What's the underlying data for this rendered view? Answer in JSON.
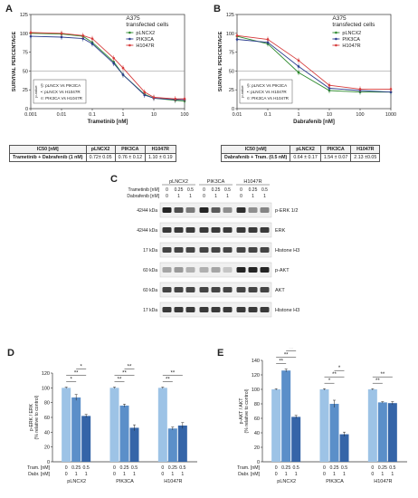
{
  "panel_letters": [
    "A",
    "B",
    "C",
    "D",
    "E"
  ],
  "ic_table_a": {
    "headers": [
      "IC50 [nM]",
      "pLNCX2",
      "PIK3CA",
      "H1047R"
    ],
    "row": [
      "Trametinib + Dabrafenib (1 nM)",
      "0.72± 0.05",
      "0.76 ± 0.12",
      "1.10 ± 0.19"
    ]
  },
  "ic_table_b": {
    "headers": [
      "IC50 [nM]",
      "pLNCX2",
      "PIK3CA",
      "H1047R"
    ],
    "row": [
      "Dabrafenib + Tram. (0.5 nM)",
      "0.64 ± 0.17",
      "1.54 ± 0.07",
      "2.13 ±0.05"
    ]
  },
  "blot": {
    "groups": [
      "pLNCX2",
      "PIK3CA",
      "H1047R"
    ],
    "tram_label": "Trametinib [nM]",
    "dabr_label": "Dabrafenib [nM]",
    "tram_values": [
      "0",
      "0.25",
      "0.5",
      "0",
      "0.25",
      "0.5",
      "0",
      "0.25",
      "0.5"
    ],
    "dabr_values": [
      "0",
      "1",
      "1",
      "0",
      "1",
      "1",
      "0",
      "1",
      "1"
    ],
    "rows": [
      {
        "kda": "42/44 kDa",
        "name": "p-ERK 1/2"
      },
      {
        "kda": "42/44 kDa",
        "name": "ERK"
      },
      {
        "kda": "17 kDa",
        "name": "Histone H3"
      },
      {
        "kda": "60 kDa",
        "name": "p-AKT"
      },
      {
        "kda": "60 kDa",
        "name": "AKT"
      },
      {
        "kda": "17 kDa",
        "name": "Histone H3"
      }
    ],
    "band_intensity": [
      [
        0.95,
        0.75,
        0.55,
        0.95,
        0.7,
        0.45,
        0.9,
        0.45,
        0.5
      ],
      [
        0.85,
        0.85,
        0.85,
        0.85,
        0.85,
        0.85,
        0.85,
        0.85,
        0.85
      ],
      [
        0.8,
        0.8,
        0.8,
        0.8,
        0.8,
        0.8,
        0.8,
        0.8,
        0.8
      ],
      [
        0.35,
        0.4,
        0.3,
        0.3,
        0.35,
        0.2,
        0.95,
        0.95,
        0.95
      ],
      [
        0.8,
        0.8,
        0.8,
        0.8,
        0.8,
        0.8,
        0.8,
        0.8,
        0.8
      ],
      [
        0.85,
        0.85,
        0.85,
        0.85,
        0.85,
        0.85,
        0.85,
        0.85,
        0.85
      ]
    ]
  },
  "colors": {
    "pLNCX2": "#2e8b2e",
    "PIK3CA": "#2c3e8f",
    "H1047R": "#d63a3a",
    "bar_light": "#9dc3e6",
    "bar_mid": "#5b8fc9",
    "bar_dark": "#3565a8"
  },
  "chart_data": [
    {
      "type": "line",
      "panel": "A",
      "annotation": "A375\ntransfected cells",
      "xlabel": "Trametinib [nM]",
      "ylabel": "SURVIVAL PERCENTAGE",
      "xscale": "log",
      "xlim": [
        0.001,
        100
      ],
      "ylim": [
        0,
        125
      ],
      "xticks": [
        "0.001",
        "0.01",
        "0.1",
        "1",
        "10",
        "100"
      ],
      "yticks": [
        "0",
        "25",
        "50",
        "75",
        "100",
        "125"
      ],
      "reference_line": 50,
      "x": [
        0.001,
        0.01,
        0.05,
        0.1,
        0.5,
        1,
        5,
        10,
        50,
        100
      ],
      "series": [
        {
          "name": "pLNCX2",
          "values": [
            100,
            99,
            96,
            88,
            62,
            45,
            19,
            14,
            11,
            10
          ]
        },
        {
          "name": "PIK3CA",
          "values": [
            96,
            95,
            93,
            86,
            60,
            45,
            18,
            14,
            12,
            12
          ]
        },
        {
          "name": "H1047R",
          "values": [
            101,
            100,
            97,
            93,
            67,
            54,
            22,
            15,
            13,
            13
          ]
        }
      ],
      "legend": [
        "pLNCX2",
        "PIK3CA",
        "H1047R"
      ],
      "legend_position": "top-right",
      "stats_box": [
        "§: pLNCX Vs PIK3CA",
        "•: pLNCX Vs H1047R",
        "¤: PIK3CA Vs H1047R"
      ],
      "stats_box_title": "p-value"
    },
    {
      "type": "line",
      "panel": "B",
      "annotation": "A375\ntransfected cells",
      "xlabel": "Dabrafenib [nM]",
      "ylabel": "SURVIVAL PERCENTAGE",
      "xscale": "log",
      "xlim": [
        0.01,
        1000
      ],
      "ylim": [
        0,
        125
      ],
      "xticks": [
        "0.01",
        "0.1",
        "1",
        "10",
        "100",
        "1000"
      ],
      "yticks": [
        "0",
        "25",
        "50",
        "75",
        "100",
        "125"
      ],
      "reference_line": 50,
      "x": [
        0.01,
        0.1,
        1,
        10,
        100,
        1000
      ],
      "series": [
        {
          "name": "pLNCX2",
          "values": [
            96,
            86,
            48,
            24,
            22,
            22
          ]
        },
        {
          "name": "PIK3CA",
          "values": [
            92,
            88,
            56,
            27,
            24,
            22
          ]
        },
        {
          "name": "H1047R",
          "values": [
            97,
            92,
            64,
            31,
            26,
            26
          ]
        }
      ],
      "legend": [
        "pLNCX2",
        "PIK3CA",
        "H1047R"
      ],
      "legend_position": "top-right",
      "stats_box": [
        "§: pLNCX Vs PIK3CA",
        "•: pLNCX Vs H1047R",
        "¤: PIK3CA Vs H1047R"
      ],
      "stats_box_title": "p-value"
    },
    {
      "type": "bar",
      "panel": "D",
      "ylabel": "p-ERK / ERK\n(% relative to control)",
      "ylim": [
        0,
        120
      ],
      "yticks": [
        "0",
        "20",
        "40",
        "60",
        "80",
        "100",
        "120"
      ],
      "groups": [
        "pLNCX2",
        "PIK3CA",
        "H1047R"
      ],
      "row_labels": [
        "Tram. [nM]",
        "Dabr. [nM]"
      ],
      "tram": [
        "0",
        "0.25",
        "0.5"
      ],
      "dabr": [
        "0",
        "1",
        "1"
      ],
      "values": [
        [
          100,
          87,
          62
        ],
        [
          100,
          76,
          46
        ],
        [
          100,
          45,
          49
        ]
      ],
      "errors": [
        [
          1,
          4,
          2
        ],
        [
          1,
          2,
          4
        ],
        [
          1,
          2,
          4
        ]
      ],
      "significance": [
        [
          {
            "from": 0,
            "to": 1,
            "label": "*"
          },
          {
            "from": 0,
            "to": 2,
            "label": "**"
          },
          {
            "from": 1,
            "to": 2,
            "label": "*"
          }
        ],
        [
          {
            "from": 0,
            "to": 1,
            "label": "**"
          },
          {
            "from": 0,
            "to": 2,
            "label": "**"
          },
          {
            "from": 1,
            "to": 2,
            "label": "**"
          }
        ],
        [
          {
            "from": 0,
            "to": 1,
            "label": "**"
          },
          {
            "from": 0,
            "to": 2,
            "label": "**"
          }
        ]
      ]
    },
    {
      "type": "bar",
      "panel": "E",
      "ylabel": "p-AKT / AKT\n(% relative to control)",
      "ylim": [
        0,
        140
      ],
      "yticks": [
        "0",
        "20",
        "40",
        "60",
        "80",
        "100",
        "120",
        "140"
      ],
      "groups": [
        "pLNCX2",
        "PIK3CA",
        "H1047R"
      ],
      "row_labels": [
        "Tram. [nM]",
        "Dabr. [nM]"
      ],
      "tram": [
        "0",
        "0.25",
        "0.5"
      ],
      "dabr": [
        "0",
        "1",
        "1"
      ],
      "values": [
        [
          100,
          126,
          62
        ],
        [
          100,
          80,
          38
        ],
        [
          100,
          82,
          81
        ]
      ],
      "errors": [
        [
          1,
          2,
          2
        ],
        [
          1,
          5,
          3
        ],
        [
          1,
          1,
          2
        ]
      ],
      "significance": [
        [
          {
            "from": 0,
            "to": 1,
            "label": "**"
          },
          {
            "from": 0,
            "to": 2,
            "label": "**"
          },
          {
            "from": 1,
            "to": 2,
            "label": "**"
          }
        ],
        [
          {
            "from": 0,
            "to": 1,
            "label": "*"
          },
          {
            "from": 0,
            "to": 2,
            "label": "**"
          },
          {
            "from": 1,
            "to": 2,
            "label": "*"
          }
        ],
        [
          {
            "from": 0,
            "to": 1,
            "label": "**"
          },
          {
            "from": 0,
            "to": 2,
            "label": "**"
          }
        ]
      ]
    }
  ]
}
